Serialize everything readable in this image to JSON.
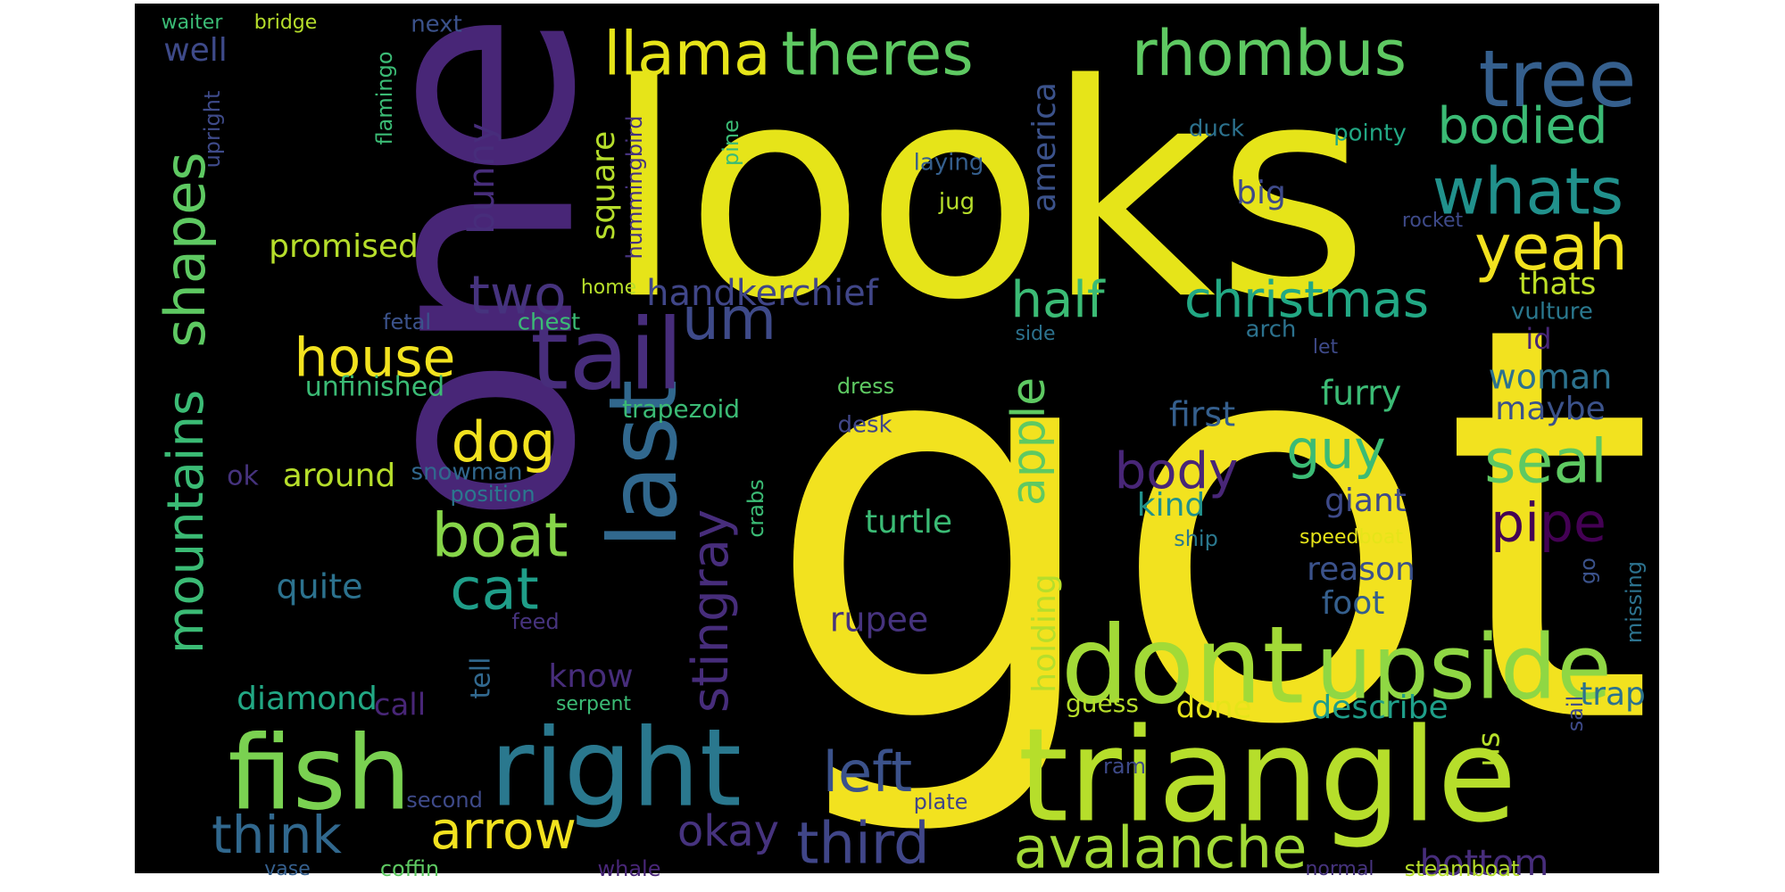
{
  "background_color": "#000000",
  "palette": {
    "yellow": "#f2e21f",
    "lime": "#b6de2b",
    "light_green": "#5ec962",
    "green": "#3bbb75",
    "teal": "#21918c",
    "dark_teal": "#2a788e",
    "slate": "#355f8d",
    "indigo": "#404688",
    "violet": "#482677",
    "deep_purple": "#440154"
  },
  "words": [
    {
      "text": "got",
      "color": "#f2e21f"
    },
    {
      "text": "looks",
      "color": "#e6e419"
    },
    {
      "text": "one",
      "color": "#482677"
    },
    {
      "text": "triangle",
      "color": "#b6de2b"
    },
    {
      "text": "dont",
      "color": "#a2da37"
    },
    {
      "text": "upside",
      "color": "#8fd744"
    },
    {
      "text": "right",
      "color": "#2a788e"
    },
    {
      "text": "fish",
      "color": "#7ad151"
    },
    {
      "text": "last",
      "color": "#31688e"
    },
    {
      "text": "tail",
      "color": "#472d7b"
    },
    {
      "text": "tree",
      "color": "#355f8d"
    },
    {
      "text": "rhombus",
      "color": "#5ec962"
    },
    {
      "text": "theres",
      "color": "#5ec962"
    },
    {
      "text": "llama",
      "color": "#e6e419"
    },
    {
      "text": "whats",
      "color": "#21918c"
    },
    {
      "text": "yeah",
      "color": "#f2e21f"
    },
    {
      "text": "bodied",
      "color": "#3bbb75"
    },
    {
      "text": "half",
      "color": "#3bbb75"
    },
    {
      "text": "christmas",
      "color": "#22a884"
    },
    {
      "text": "house",
      "color": "#f2e21f"
    },
    {
      "text": "um",
      "color": "#3e4a89"
    },
    {
      "text": "two",
      "color": "#46337e"
    },
    {
      "text": "shapes",
      "color": "#5ec962"
    },
    {
      "text": "mountains",
      "color": "#3bbb75"
    },
    {
      "text": "dog",
      "color": "#f2e21f"
    },
    {
      "text": "boat",
      "color": "#86d549"
    },
    {
      "text": "cat",
      "color": "#1f9e89"
    },
    {
      "text": "stingray",
      "color": "#472d7b"
    },
    {
      "text": "guy",
      "color": "#3bbb75"
    },
    {
      "text": "seal",
      "color": "#5ec962"
    },
    {
      "text": "pipe",
      "color": "#440154"
    },
    {
      "text": "body",
      "color": "#482677"
    },
    {
      "text": "apple",
      "color": "#5ec962"
    },
    {
      "text": "arrow",
      "color": "#f2e21f"
    },
    {
      "text": "think",
      "color": "#31688e"
    },
    {
      "text": "third",
      "color": "#404688"
    },
    {
      "text": "avalanche",
      "color": "#a2da37"
    },
    {
      "text": "left",
      "color": "#3b528b"
    },
    {
      "text": "okay",
      "color": "#46337e"
    },
    {
      "text": "bottom",
      "color": "#472d7b"
    },
    {
      "text": "handkerchief",
      "color": "#404688"
    },
    {
      "text": "promised",
      "color": "#b6de2b"
    },
    {
      "text": "bunny",
      "color": "#472d7b"
    },
    {
      "text": "square",
      "color": "#b6de2b"
    },
    {
      "text": "big",
      "color": "#3e4a89"
    },
    {
      "text": "america",
      "color": "#3b528b"
    },
    {
      "text": "thats",
      "color": "#bddf26"
    },
    {
      "text": "well",
      "color": "#3e4a89"
    },
    {
      "text": "around",
      "color": "#b6de2b"
    },
    {
      "text": "quite",
      "color": "#2c728e"
    },
    {
      "text": "diamond",
      "color": "#22a884"
    },
    {
      "text": "unfinished",
      "color": "#3bbb75"
    },
    {
      "text": "trapezoid",
      "color": "#3bbb75"
    },
    {
      "text": "first",
      "color": "#355f8d"
    },
    {
      "text": "furry",
      "color": "#3bbb75"
    },
    {
      "text": "woman",
      "color": "#2c728e"
    },
    {
      "text": "maybe",
      "color": "#3b528b"
    },
    {
      "text": "id",
      "color": "#482677"
    },
    {
      "text": "kind",
      "color": "#21918c"
    },
    {
      "text": "giant",
      "color": "#3e4a89"
    },
    {
      "text": "reason",
      "color": "#3b528b"
    },
    {
      "text": "foot",
      "color": "#355f8d"
    },
    {
      "text": "trap",
      "color": "#2c728e"
    },
    {
      "text": "describe",
      "color": "#1f9e89"
    },
    {
      "text": "done",
      "color": "#e6e419"
    },
    {
      "text": "guess",
      "color": "#b6de2b"
    },
    {
      "text": "holding",
      "color": "#b6de2b"
    },
    {
      "text": "turtle",
      "color": "#3bbb75"
    },
    {
      "text": "rupee",
      "color": "#46337e"
    },
    {
      "text": "know",
      "color": "#472d7b"
    },
    {
      "text": "call",
      "color": "#482677"
    },
    {
      "text": "tell",
      "color": "#31688e"
    },
    {
      "text": "us",
      "color": "#b6de2b"
    },
    {
      "text": "ok",
      "color": "#46337e"
    },
    {
      "text": "snowman",
      "color": "#31688e"
    },
    {
      "text": "position",
      "color": "#2a788e"
    },
    {
      "text": "crabs",
      "color": "#3bbb75"
    },
    {
      "text": "ship",
      "color": "#2a788e"
    },
    {
      "text": "speedboat",
      "color": "#e6e419"
    },
    {
      "text": "missing",
      "color": "#2c728e"
    },
    {
      "text": "go",
      "color": "#3b528b"
    },
    {
      "text": "sail",
      "color": "#3e4a89"
    },
    {
      "text": "waiter",
      "color": "#3bbb75"
    },
    {
      "text": "bridge",
      "color": "#b6de2b"
    },
    {
      "text": "flamingo",
      "color": "#3bbb75"
    },
    {
      "text": "next",
      "color": "#3b528b"
    },
    {
      "text": "upright",
      "color": "#3e4a89"
    },
    {
      "text": "hummingbird",
      "color": "#46337e"
    },
    {
      "text": "pine",
      "color": "#3bbb75"
    },
    {
      "text": "laying",
      "color": "#355f8d"
    },
    {
      "text": "jug",
      "color": "#b6de2b"
    },
    {
      "text": "duck",
      "color": "#2c728e"
    },
    {
      "text": "pointy",
      "color": "#22a884"
    },
    {
      "text": "rocket",
      "color": "#3e4a89"
    },
    {
      "text": "home",
      "color": "#b6de2b"
    },
    {
      "text": "chest",
      "color": "#3bbb75"
    },
    {
      "text": "fetal",
      "color": "#3b528b"
    },
    {
      "text": "arch",
      "color": "#2c728e"
    },
    {
      "text": "let",
      "color": "#3e4a89"
    },
    {
      "text": "side",
      "color": "#2c728e"
    },
    {
      "text": "vulture",
      "color": "#2a788e"
    },
    {
      "text": "dress",
      "color": "#5ec962"
    },
    {
      "text": "desk",
      "color": "#404688"
    },
    {
      "text": "feed",
      "color": "#46337e"
    },
    {
      "text": "serpent",
      "color": "#3bbb75"
    },
    {
      "text": "second",
      "color": "#3e4a89"
    },
    {
      "text": "vase",
      "color": "#355f8d"
    },
    {
      "text": "coffin",
      "color": "#5ec962"
    },
    {
      "text": "whale",
      "color": "#482677"
    },
    {
      "text": "plate",
      "color": "#404688"
    },
    {
      "text": "ram",
      "color": "#3e4a89"
    },
    {
      "text": "normal",
      "color": "#46337e"
    },
    {
      "text": "steamboat",
      "color": "#b6de2b"
    }
  ]
}
